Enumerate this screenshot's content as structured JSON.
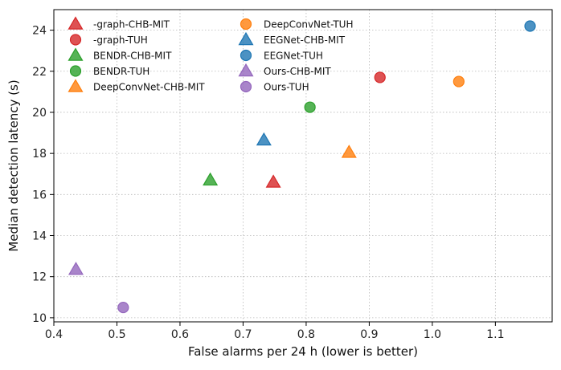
{
  "chart_data": {
    "type": "scatter",
    "title": "",
    "xlabel": "False alarms per 24 h (lower is better)",
    "ylabel": "Median detection latency (s)",
    "xlim": [
      0.4,
      1.19
    ],
    "ylim": [
      9.8,
      25.0
    ],
    "xticks": [
      0.4,
      0.5,
      0.6,
      0.7,
      0.8,
      0.9,
      1.0,
      1.1
    ],
    "xtick_labels": [
      "0.4",
      "0.5",
      "0.6",
      "0.7",
      "0.8",
      "0.9",
      "1.0",
      "1.1"
    ],
    "yticks": [
      10,
      12,
      14,
      16,
      18,
      20,
      22,
      24
    ],
    "ytick_labels": [
      "10",
      "12",
      "14",
      "16",
      "18",
      "20",
      "22",
      "24"
    ],
    "grid": true,
    "legend_position": "top-left",
    "series": [
      {
        "name": "-graph-CHB-MIT",
        "marker": "triangle",
        "color": "#d62728",
        "x": 0.748,
        "y": 16.6
      },
      {
        "name": "-graph-TUH",
        "marker": "circle",
        "color": "#d62728",
        "x": 0.917,
        "y": 21.7
      },
      {
        "name": "BENDR-CHB-MIT",
        "marker": "triangle",
        "color": "#2ca02c",
        "x": 0.648,
        "y": 16.7
      },
      {
        "name": "BENDR-TUH",
        "marker": "circle",
        "color": "#2ca02c",
        "x": 0.806,
        "y": 20.25
      },
      {
        "name": "DeepConvNet-CHB-MIT",
        "marker": "triangle",
        "color": "#ff7f0e",
        "x": 0.868,
        "y": 18.05
      },
      {
        "name": "DeepConvNet-TUH",
        "marker": "circle",
        "color": "#ff7f0e",
        "x": 1.042,
        "y": 21.5
      },
      {
        "name": "EEGNet-CHB-MIT",
        "marker": "triangle",
        "color": "#1f77b4",
        "x": 0.733,
        "y": 18.65
      },
      {
        "name": "EEGNet-TUH",
        "marker": "circle",
        "color": "#1f77b4",
        "x": 1.155,
        "y": 24.2
      },
      {
        "name": "Ours-CHB-MIT",
        "marker": "triangle",
        "color": "#9467bd",
        "x": 0.435,
        "y": 12.35
      },
      {
        "name": "Ours-TUH",
        "marker": "circle",
        "color": "#9467bd",
        "x": 0.51,
        "y": 10.5
      }
    ]
  }
}
